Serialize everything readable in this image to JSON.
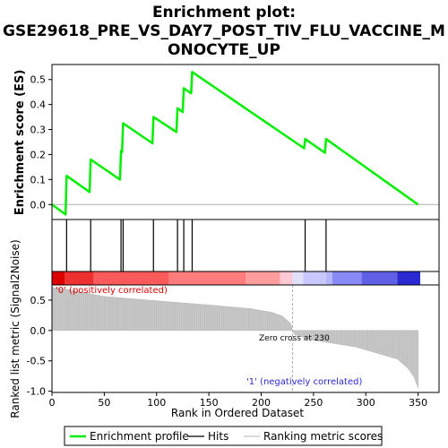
{
  "chart_data": {
    "type": "line",
    "title_lines": [
      "Enrichment plot:",
      "GSE29618_PRE_VS_DAY7_POST_TIV_FLU_VACCINE_M",
      "ONOCYTE_UP"
    ],
    "xlabel": "Rank in Ordered Dataset",
    "x_range": [
      0,
      370
    ],
    "x_ticks": [
      0,
      50,
      100,
      150,
      200,
      250,
      300,
      350
    ],
    "top_panel": {
      "ylabel": "Enrichment score (ES)",
      "ylim": [
        -0.06,
        0.56
      ],
      "y_ticks": [
        0.0,
        0.1,
        0.2,
        0.3,
        0.4,
        0.5
      ],
      "series_name": "Enrichment profile",
      "color": "#00ee00",
      "points": [
        [
          0,
          0.0
        ],
        [
          13,
          -0.04
        ],
        [
          14,
          0.115
        ],
        [
          36,
          0.05
        ],
        [
          37,
          0.18
        ],
        [
          65,
          0.1
        ],
        [
          66,
          0.215
        ],
        [
          67,
          0.21
        ],
        [
          68,
          0.325
        ],
        [
          96,
          0.245
        ],
        [
          97,
          0.35
        ],
        [
          119,
          0.29
        ],
        [
          120,
          0.385
        ],
        [
          125,
          0.37
        ],
        [
          126,
          0.465
        ],
        [
          133,
          0.445
        ],
        [
          134,
          0.53
        ],
        [
          241,
          0.225
        ],
        [
          242,
          0.262
        ],
        [
          261,
          0.207
        ],
        [
          262,
          0.262
        ],
        [
          350,
          0.0
        ]
      ]
    },
    "hits": {
      "series_name": "Hits",
      "ranks": [
        14,
        37,
        66,
        68,
        97,
        120,
        126,
        134,
        242,
        262
      ]
    },
    "colorbar": {
      "segments": [
        {
          "from": 0,
          "to": 12,
          "color": "#dd0000"
        },
        {
          "from": 12,
          "to": 40,
          "color": "#ee3030"
        },
        {
          "from": 40,
          "to": 112,
          "color": "#fa5a5a"
        },
        {
          "from": 112,
          "to": 185,
          "color": "#ff7c7c"
        },
        {
          "from": 185,
          "to": 218,
          "color": "#ff9c9c"
        },
        {
          "from": 218,
          "to": 230,
          "color": "#ffc8d4"
        },
        {
          "from": 230,
          "to": 240,
          "color": "#e0e0f8"
        },
        {
          "from": 240,
          "to": 262,
          "color": "#c8c8ff"
        },
        {
          "from": 262,
          "to": 268,
          "color": "#b4b4ff"
        },
        {
          "from": 268,
          "to": 296,
          "color": "#8a8af6"
        },
        {
          "from": 296,
          "to": 330,
          "color": "#6060e6"
        },
        {
          "from": 330,
          "to": 352,
          "color": "#2a2ad2"
        }
      ]
    },
    "bottom_panel": {
      "ylabel": "Ranked list metric (Signal2Noise)",
      "ylim": [
        -1.02,
        0.75
      ],
      "y_ticks": [
        0.5,
        0.0,
        -0.5,
        -1.0
      ],
      "series_name": "Ranking metric scores",
      "profile": [
        [
          0,
          0.71
        ],
        [
          20,
          0.66
        ],
        [
          50,
          0.56
        ],
        [
          100,
          0.49
        ],
        [
          150,
          0.42
        ],
        [
          190,
          0.36
        ],
        [
          210,
          0.3
        ],
        [
          220,
          0.24
        ],
        [
          228,
          0.12
        ],
        [
          230,
          0.0
        ],
        [
          232,
          -0.07
        ],
        [
          250,
          -0.16
        ],
        [
          290,
          -0.27
        ],
        [
          330,
          -0.47
        ],
        [
          340,
          -0.62
        ],
        [
          346,
          -0.76
        ],
        [
          350,
          -0.95
        ]
      ],
      "zero_cross_rank": 230,
      "annotations": {
        "positive": "'0' (positively correlated)",
        "negative": "'1' (negatively correlated)",
        "zero_cross": "Zero cross at 230"
      }
    },
    "legend": {
      "placement": "bottom",
      "entries": [
        {
          "label": "Enrichment profile",
          "color": "#00ee00"
        },
        {
          "label": "Hits",
          "color": "#000000"
        },
        {
          "label": "Ranking metric scores",
          "color": "#c0c0c0"
        }
      ]
    }
  }
}
